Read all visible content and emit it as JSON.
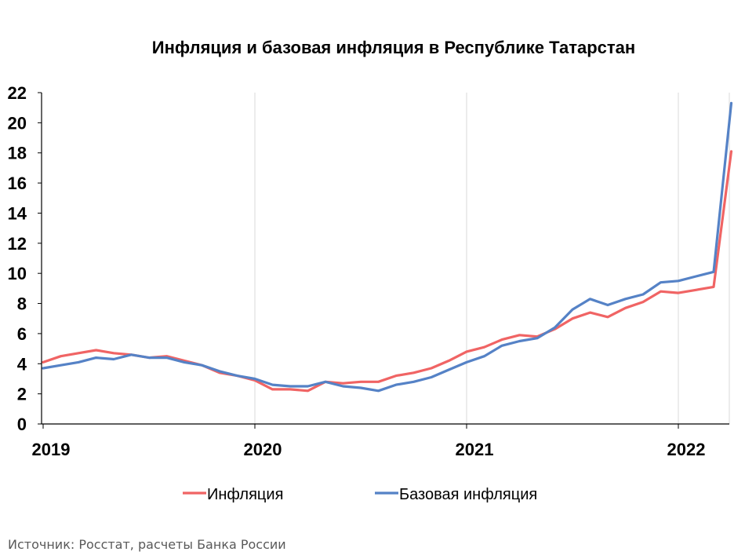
{
  "colors": {
    "inflation": "#f06464",
    "core": "#5582c6",
    "grid": "#d9d9d9",
    "axis": "#000000"
  },
  "source": "Источник: Росстат, расчеты Банка России",
  "chart_data": {
    "type": "line",
    "title": "Инфляция и базовая инфляция в Республике Татарстан",
    "xlabel": "",
    "ylabel": "",
    "ylim": [
      0,
      22
    ],
    "yticks": [
      "0",
      "2",
      "4",
      "6",
      "8",
      "10",
      "12",
      "14",
      "16",
      "18",
      "20",
      "22"
    ],
    "xticks": [
      "2019",
      "2020",
      "2021",
      "2022"
    ],
    "x": [
      "2019-01",
      "2019-02",
      "2019-03",
      "2019-04",
      "2019-05",
      "2019-06",
      "2019-07",
      "2019-08",
      "2019-09",
      "2019-10",
      "2019-11",
      "2019-12",
      "2020-01",
      "2020-02",
      "2020-03",
      "2020-04",
      "2020-05",
      "2020-06",
      "2020-07",
      "2020-08",
      "2020-09",
      "2020-10",
      "2020-11",
      "2020-12",
      "2021-01",
      "2021-02",
      "2021-03",
      "2021-04",
      "2021-05",
      "2021-06",
      "2021-07",
      "2021-08",
      "2021-09",
      "2021-10",
      "2021-11",
      "2021-12",
      "2022-01",
      "2022-02",
      "2022-03",
      "2022-04"
    ],
    "grid": "vertical at year starts",
    "legend_position": "bottom",
    "series": [
      {
        "name": "Инфляция",
        "color_key": "inflation",
        "values": [
          4.1,
          4.5,
          4.7,
          4.9,
          4.7,
          4.6,
          4.4,
          4.5,
          4.2,
          3.9,
          3.4,
          3.2,
          2.9,
          2.3,
          2.3,
          2.2,
          2.8,
          2.7,
          2.8,
          2.8,
          3.2,
          3.4,
          3.7,
          4.2,
          4.8,
          5.1,
          5.6,
          5.9,
          5.8,
          6.3,
          7.0,
          7.4,
          7.1,
          7.7,
          8.1,
          8.8,
          8.7,
          8.9,
          9.1,
          18.1
        ]
      },
      {
        "name": "Базовая инфляция",
        "color_key": "core",
        "values": [
          3.7,
          3.9,
          4.1,
          4.4,
          4.3,
          4.6,
          4.4,
          4.4,
          4.1,
          3.9,
          3.5,
          3.2,
          3.0,
          2.6,
          2.5,
          2.5,
          2.8,
          2.5,
          2.4,
          2.2,
          2.6,
          2.8,
          3.1,
          3.6,
          4.1,
          4.5,
          5.2,
          5.5,
          5.7,
          6.4,
          7.6,
          8.3,
          7.9,
          8.3,
          8.6,
          9.4,
          9.5,
          9.8,
          10.1,
          21.3
        ]
      }
    ]
  }
}
